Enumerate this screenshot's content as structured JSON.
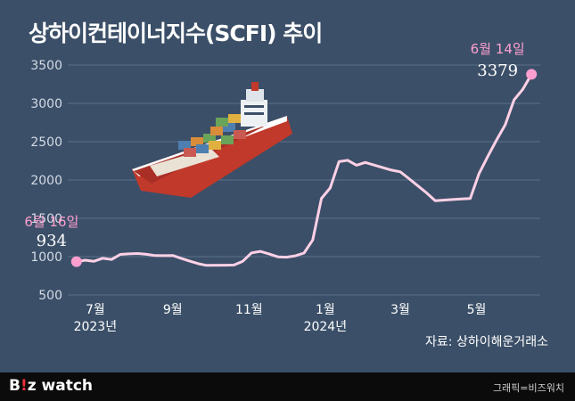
{
  "title": "상하이컨테이너지수(SCFI) 추이",
  "source": "자료: 상하이해운거래소",
  "footer": {
    "logo_prefix": "B",
    "logo_accent": "!",
    "logo_suffix": "z watch",
    "credit": "그래픽=비즈워치"
  },
  "colors": {
    "background": "#3b4f68",
    "line": "#ffd1e6",
    "marker": "#ff9fcf",
    "footer": "#0b0b0b",
    "logo_accent": "#e8323c"
  },
  "chart_data": {
    "type": "line",
    "title": "상하이컨테이너지수(SCFI) 추이",
    "xlabel": "",
    "ylabel": "",
    "ylim": [
      500,
      3500
    ],
    "yticks": [
      500,
      1000,
      1500,
      2000,
      2500,
      3000,
      3500
    ],
    "xlim": [
      "2023-06-09",
      "2024-06-21"
    ],
    "xticks": [
      {
        "date": "2023-07-01",
        "label": "7월",
        "year": "2023년"
      },
      {
        "date": "2023-09-01",
        "label": "9월",
        "year": ""
      },
      {
        "date": "2023-11-01",
        "label": "11월",
        "year": ""
      },
      {
        "date": "2024-01-01",
        "label": "1월",
        "year": "2024년"
      },
      {
        "date": "2024-03-01",
        "label": "3월",
        "year": ""
      },
      {
        "date": "2024-05-01",
        "label": "5월",
        "year": ""
      }
    ],
    "grid": true,
    "series": [
      {
        "x": [
          "2023-06-16",
          "2023-06-23",
          "2023-06-30",
          "2023-07-07",
          "2023-07-14",
          "2023-07-21",
          "2023-07-28",
          "2023-08-04",
          "2023-08-11",
          "2023-08-18",
          "2023-08-25",
          "2023-09-01",
          "2023-09-08",
          "2023-09-15",
          "2023-09-22",
          "2023-09-28",
          "2023-10-13",
          "2023-10-20",
          "2023-10-27",
          "2023-11-03",
          "2023-11-10",
          "2023-11-17",
          "2023-11-24",
          "2023-12-01",
          "2023-12-08",
          "2023-12-15",
          "2023-12-22",
          "2023-12-29",
          "2024-01-05",
          "2024-01-12",
          "2024-01-19",
          "2024-01-26",
          "2024-02-02",
          "2024-02-09",
          "2024-02-23",
          "2024-03-01",
          "2024-03-08",
          "2024-03-15",
          "2024-03-22",
          "2024-03-29",
          "2024-04-12",
          "2024-04-19",
          "2024-04-26",
          "2024-05-03",
          "2024-05-10",
          "2024-05-17",
          "2024-05-24",
          "2024-05-31",
          "2024-06-07",
          "2024-06-14"
        ],
        "values": [
          934,
          953,
          940,
          979,
          963,
          1029,
          1036,
          1041,
          1030,
          1014,
          1013,
          1015,
          976,
          940,
          906,
          886,
          888,
          891,
          940,
          1049,
          1069,
          1036,
          998,
          993,
          1011,
          1047,
          1217,
          1760,
          1897,
          2239,
          2257,
          2193,
          2229,
          2195,
          2129,
          2107,
          2017,
          1926,
          1832,
          1730,
          1745,
          1754,
          1758,
          2082,
          2306,
          2520,
          2720,
          3044,
          3184,
          3379
        ]
      }
    ],
    "annotations": [
      {
        "date": "2023-06-16",
        "label": "6월 16일",
        "value": "934"
      },
      {
        "date": "2024-06-14",
        "label": "6월 14일",
        "value": "3379"
      }
    ]
  }
}
